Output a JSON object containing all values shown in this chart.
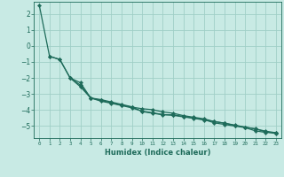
{
  "xlabel": "Humidex (Indice chaleur)",
  "bg_color": "#c8eae4",
  "grid_color": "#a0cfc7",
  "line_color": "#1e6b5a",
  "xlim": [
    -0.5,
    23.5
  ],
  "ylim": [
    -5.75,
    2.75
  ],
  "xticks": [
    0,
    1,
    2,
    3,
    4,
    5,
    6,
    7,
    8,
    9,
    10,
    11,
    12,
    13,
    14,
    15,
    16,
    17,
    18,
    19,
    20,
    21,
    22,
    23
  ],
  "yticks": [
    -5,
    -4,
    -3,
    -2,
    -1,
    0,
    1,
    2
  ],
  "line1_x": [
    0,
    1,
    2,
    3,
    4,
    5,
    6,
    7,
    8,
    9,
    10,
    11,
    12,
    13,
    14,
    15,
    16,
    17,
    18,
    19,
    20,
    21,
    22,
    23
  ],
  "line1_y": [
    2.55,
    -0.65,
    -0.85,
    -2.0,
    -2.45,
    -3.25,
    -3.35,
    -3.5,
    -3.65,
    -3.8,
    -4.1,
    -4.2,
    -4.3,
    -4.3,
    -4.4,
    -4.5,
    -4.6,
    -4.8,
    -4.9,
    -5.0,
    -5.1,
    -5.3,
    -5.4,
    -5.4
  ],
  "line2_x": [
    1,
    2,
    3,
    4,
    5,
    6,
    7,
    8,
    9,
    10,
    11,
    12,
    13,
    14,
    15,
    16,
    17,
    18,
    19,
    20,
    21,
    22,
    23
  ],
  "line2_y": [
    -0.65,
    -0.85,
    -2.0,
    -2.55,
    -3.25,
    -3.4,
    -3.55,
    -3.7,
    -3.82,
    -3.92,
    -3.98,
    -4.12,
    -4.2,
    -4.35,
    -4.45,
    -4.55,
    -4.72,
    -4.82,
    -4.97,
    -5.07,
    -5.18,
    -5.32,
    -5.42
  ],
  "line3_x": [
    3,
    4,
    5,
    6,
    7,
    8,
    9,
    10,
    11,
    12,
    13,
    14,
    15,
    16,
    17,
    18,
    19,
    20,
    21,
    22,
    23
  ],
  "line3_y": [
    -2.0,
    -2.3,
    -3.25,
    -3.45,
    -3.58,
    -3.72,
    -3.87,
    -4.07,
    -4.17,
    -4.28,
    -4.33,
    -4.43,
    -4.52,
    -4.62,
    -4.72,
    -4.82,
    -4.94,
    -5.07,
    -5.17,
    -5.37,
    -5.47
  ]
}
